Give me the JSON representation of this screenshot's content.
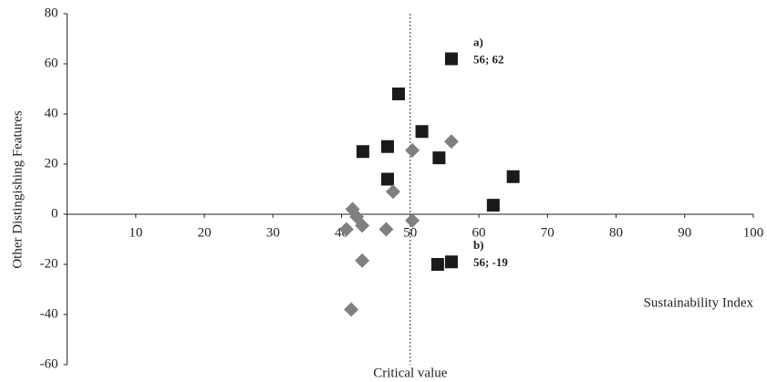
{
  "chart_data": {
    "type": "scatter",
    "y_label": "Other Distingishing Features",
    "x_label": "Sustainability  Index",
    "critical_value": 50,
    "critical_label": "Critical value",
    "xlim": [
      0,
      100
    ],
    "xticks": [
      10,
      20,
      30,
      40,
      50,
      60,
      70,
      80,
      90,
      100
    ],
    "ylim": [
      -60,
      80
    ],
    "yticks": [
      -60,
      -40,
      -20,
      0,
      20,
      40,
      60,
      80
    ],
    "grid": false,
    "series": [
      {
        "color": "#1a1a1a",
        "marker": "square",
        "x": [
          56,
          48.3,
          51.7,
          43.1,
          46.7,
          54.2,
          46.7,
          65,
          62.1,
          56,
          54
        ],
        "values": [
          62,
          48,
          33,
          25,
          27,
          22.5,
          14,
          15,
          3.6,
          -19,
          -20
        ]
      },
      {
        "color": "#808080",
        "marker": "diamond",
        "x": [
          40.7,
          43,
          41.6,
          42.2,
          47.5,
          46.5,
          50.3,
          56,
          50.3,
          43,
          41.4
        ],
        "values": [
          -6,
          -4.5,
          2,
          -1,
          9,
          -6,
          25.5,
          29,
          -2.5,
          -18.5,
          -38
        ]
      }
    ],
    "annotations": [
      {
        "label": "a)",
        "text": "56; 62",
        "x": 56,
        "y": 62
      },
      {
        "label": "b)",
        "text": "56; -19",
        "x": 56,
        "y": -19
      }
    ]
  }
}
